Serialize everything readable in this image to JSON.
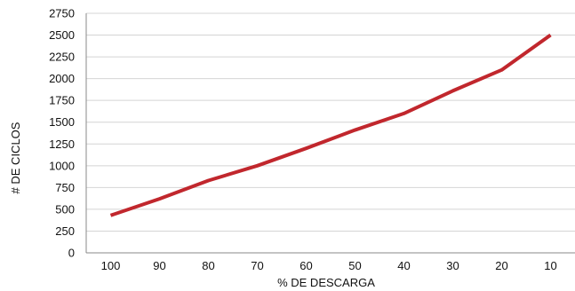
{
  "chart_data": {
    "type": "line",
    "title": "",
    "xlabel": "% DE DESCARGA",
    "ylabel": "# DE CICLOS",
    "categories": [
      "100",
      "90",
      "80",
      "70",
      "60",
      "50",
      "40",
      "30",
      "20",
      "10"
    ],
    "series": [
      {
        "values": [
          430,
          620,
          830,
          1000,
          1200,
          1410,
          1600,
          1860,
          2100,
          2500
        ],
        "color": "#c1272d"
      }
    ],
    "ylim": [
      0,
      2750
    ],
    "yticks": [
      0,
      250,
      500,
      750,
      1000,
      1250,
      1500,
      1750,
      2000,
      2250,
      2500,
      2750
    ],
    "grid": true,
    "legend": "none"
  }
}
